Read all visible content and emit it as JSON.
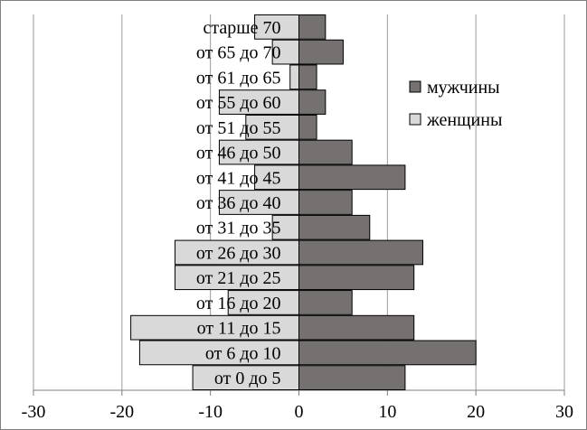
{
  "chart_data": {
    "type": "bar",
    "orientation": "horizontal",
    "categories": [
      "от 0 до 5",
      "от 6 до 10",
      "от 11 до 15",
      "от 16 до 20",
      "от 21 до 25",
      "от 26 до 30",
      "от 31 до 35",
      "от 36 до 40",
      "от 41 до 45",
      "от 46 до 50",
      "от 51 до 55",
      "от 55 до 60",
      "от 61 до 65",
      "от 65 до 70",
      "старше 70"
    ],
    "series": [
      {
        "name": "мужчины",
        "color": "#767171",
        "values": [
          12,
          20,
          13,
          6,
          13,
          14,
          8,
          6,
          12,
          6,
          2,
          3,
          2,
          5,
          3
        ]
      },
      {
        "name": "женщины",
        "color": "#d9d9d9",
        "values": [
          -12,
          -18,
          -19,
          -8,
          -14,
          -14,
          -3,
          -9,
          -5,
          -9,
          -6,
          -9,
          -1,
          -3,
          -5
        ]
      }
    ],
    "xlim": [
      -30,
      30
    ],
    "xticks": [
      "-30",
      "-20",
      "-10",
      "0",
      "10",
      "20",
      "30"
    ],
    "grid": true,
    "legend": "right"
  }
}
